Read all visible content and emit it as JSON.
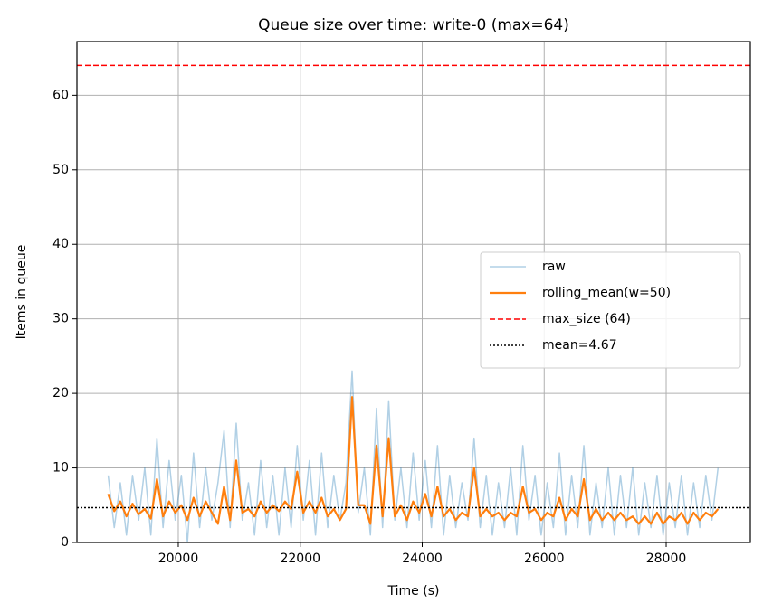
{
  "chart_data": {
    "type": "line",
    "title": "Queue size over time: write-0 (max=64)",
    "x_label": "Time (s)",
    "y_label": "Items in queue",
    "xlim": [
      18338,
      29380
    ],
    "ylim": [
      0,
      67.2
    ],
    "xticks": [
      20000,
      22000,
      24000,
      26000,
      28000
    ],
    "yticks": [
      0,
      10,
      20,
      30,
      40,
      50,
      60
    ],
    "grid": true,
    "legend": "center right",
    "x": [
      18850,
      18950,
      19050,
      19150,
      19250,
      19350,
      19450,
      19550,
      19650,
      19750,
      19850,
      19950,
      20050,
      20150,
      20250,
      20350,
      20450,
      20550,
      20650,
      20750,
      20850,
      20950,
      21050,
      21150,
      21250,
      21350,
      21450,
      21550,
      21650,
      21750,
      21850,
      21950,
      22050,
      22150,
      22250,
      22350,
      22450,
      22550,
      22650,
      22750,
      22850,
      22950,
      23050,
      23150,
      23250,
      23350,
      23450,
      23550,
      23650,
      23750,
      23850,
      23950,
      24050,
      24150,
      24250,
      24350,
      24450,
      24550,
      24650,
      24750,
      24850,
      24950,
      25050,
      25150,
      25250,
      25350,
      25450,
      25550,
      25650,
      25750,
      25850,
      25950,
      26050,
      26150,
      26250,
      26350,
      26450,
      26550,
      26650,
      26750,
      26850,
      26950,
      27050,
      27150,
      27250,
      27350,
      27450,
      27550,
      27650,
      27750,
      27850,
      27950,
      28050,
      28150,
      28250,
      28350,
      28450,
      28550,
      28650,
      28750,
      28850
    ],
    "series": [
      {
        "name": "raw",
        "color": "#1f77b4",
        "alpha": 0.35,
        "width": 1.5,
        "values": [
          9,
          2,
          8,
          1,
          9,
          3,
          10,
          1,
          14,
          2,
          11,
          3,
          9,
          0,
          12,
          2,
          10,
          3,
          8,
          15,
          2,
          16,
          3,
          8,
          1,
          11,
          2,
          9,
          1,
          10,
          2,
          13,
          3,
          11,
          1,
          12,
          2,
          9,
          3,
          8,
          23,
          4,
          10,
          1,
          18,
          2,
          19,
          3,
          10,
          2,
          12,
          3,
          11,
          2,
          13,
          1,
          9,
          2,
          8,
          3,
          14,
          2,
          9,
          1,
          8,
          2,
          10,
          1,
          13,
          3,
          9,
          1,
          8,
          2,
          12,
          1,
          9,
          2,
          13,
          1,
          8,
          2,
          10,
          1,
          9,
          2,
          10,
          1,
          8,
          2,
          9,
          1,
          8,
          2,
          9,
          1,
          8,
          2,
          9,
          3,
          10
        ]
      },
      {
        "name": "rolling_mean(w=50)",
        "color": "#ff7f0e",
        "alpha": 1,
        "width": 2.2,
        "values": [
          6.5,
          4.2,
          5.5,
          3.5,
          5.2,
          3.8,
          4.5,
          3.2,
          8.5,
          3.5,
          5.5,
          4.0,
          5.0,
          3.0,
          6.0,
          3.5,
          5.5,
          4.0,
          2.5,
          7.5,
          3.0,
          11.0,
          4.0,
          4.5,
          3.5,
          5.5,
          4.0,
          5.0,
          4.2,
          5.5,
          4.5,
          9.5,
          4.0,
          5.5,
          4.0,
          6.0,
          3.5,
          4.5,
          3.0,
          4.5,
          19.5,
          5.0,
          5.0,
          2.5,
          13.0,
          3.5,
          14.0,
          3.5,
          5.0,
          3.0,
          5.5,
          4.0,
          6.5,
          3.5,
          7.5,
          3.5,
          4.5,
          3.0,
          4.0,
          3.5,
          10.0,
          3.5,
          4.5,
          3.5,
          4.0,
          3.0,
          4.0,
          3.5,
          7.5,
          4.0,
          4.5,
          3.0,
          4.0,
          3.5,
          6.0,
          3.0,
          4.5,
          3.5,
          8.5,
          3.0,
          4.5,
          3.0,
          4.0,
          3.0,
          4.0,
          3.0,
          3.5,
          2.5,
          3.5,
          2.5,
          4.0,
          2.5,
          3.5,
          3.0,
          4.0,
          2.5,
          4.0,
          3.0,
          4.0,
          3.5,
          4.5
        ]
      }
    ],
    "hlines": [
      {
        "name": "max_size (64)",
        "value": 64,
        "color": "#ff0000",
        "style": "dashed"
      },
      {
        "name": "mean=4.67",
        "value": 4.67,
        "color": "#000000",
        "style": "dotted"
      }
    ]
  }
}
